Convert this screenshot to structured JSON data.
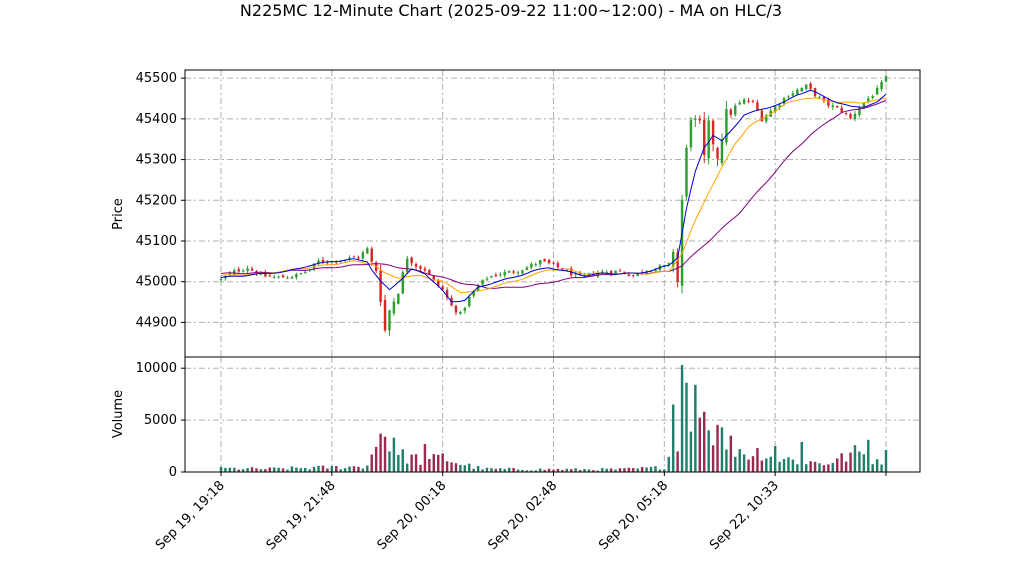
{
  "chart_data": [
    {
      "type": "candlestick",
      "title": "N225MC 12-Minute Chart (2025-09-22 11:00~12:00) - MA on HLC/3",
      "ylabel": "Price",
      "ylim": [
        44815,
        45520
      ],
      "yticks": [
        44900,
        45000,
        45100,
        45200,
        45300,
        45400,
        45500
      ],
      "xtick_labels": [
        "Sep 19, 19:18",
        "Sep 19, 21:48",
        "Sep 20, 00:18",
        "Sep 20, 02:48",
        "Sep 20, 05:18",
        "Sep 22, 10:33"
      ],
      "xtick_index": [
        0,
        25,
        50,
        75,
        100,
        125
      ],
      "bar_count": 151,
      "grid": true,
      "colors": {
        "up": "#2ca02c",
        "down": "#d62728",
        "ma_fast": "#0000cc",
        "ma_mid": "#ffa500",
        "ma_slow": "#800080"
      },
      "close_path": [
        [
          0,
          45005
        ],
        [
          3,
          45025
        ],
        [
          6,
          45035
        ],
        [
          9,
          45015
        ],
        [
          13,
          45010
        ],
        [
          17,
          45015
        ],
        [
          20,
          45030
        ],
        [
          22,
          45050
        ],
        [
          25,
          45050
        ],
        [
          28,
          45055
        ],
        [
          31,
          45060
        ],
        [
          33,
          45080
        ],
        [
          34,
          45045
        ],
        [
          35,
          45030
        ],
        [
          36,
          44960
        ],
        [
          37,
          44880
        ],
        [
          38,
          44930
        ],
        [
          40,
          44980
        ],
        [
          42,
          45060
        ],
        [
          44,
          45040
        ],
        [
          46,
          45030
        ],
        [
          48,
          45000
        ],
        [
          50,
          44980
        ],
        [
          52,
          44940
        ],
        [
          54,
          44920
        ],
        [
          56,
          44960
        ],
        [
          58,
          44990
        ],
        [
          60,
          45010
        ],
        [
          63,
          45020
        ],
        [
          66,
          45025
        ],
        [
          69,
          45035
        ],
        [
          72,
          45050
        ],
        [
          75,
          45040
        ],
        [
          78,
          45025
        ],
        [
          81,
          45010
        ],
        [
          84,
          45020
        ],
        [
          87,
          45025
        ],
        [
          90,
          45025
        ],
        [
          93,
          45015
        ],
        [
          96,
          45030
        ],
        [
          99,
          45035
        ],
        [
          101,
          45040
        ],
        [
          102,
          45080
        ],
        [
          103,
          45000
        ],
        [
          104,
          45200
        ],
        [
          105,
          45320
        ],
        [
          106,
          45410
        ],
        [
          107,
          45390
        ],
        [
          108,
          45380
        ],
        [
          109,
          45300
        ],
        [
          110,
          45380
        ],
        [
          112,
          45310
        ],
        [
          114,
          45410
        ],
        [
          116,
          45430
        ],
        [
          118,
          45445
        ],
        [
          120,
          45440
        ],
        [
          122,
          45400
        ],
        [
          124,
          45420
        ],
        [
          126,
          45440
        ],
        [
          128,
          45460
        ],
        [
          130,
          45470
        ],
        [
          132,
          45480
        ],
        [
          134,
          45460
        ],
        [
          136,
          45440
        ],
        [
          138,
          45430
        ],
        [
          140,
          45420
        ],
        [
          142,
          45400
        ],
        [
          144,
          45430
        ],
        [
          146,
          45450
        ],
        [
          148,
          45470
        ],
        [
          150,
          45500
        ]
      ],
      "ma_fast": [
        [
          0,
          45010
        ],
        [
          5,
          45015
        ],
        [
          10,
          45020
        ],
        [
          15,
          45025
        ],
        [
          20,
          45040
        ],
        [
          25,
          45050
        ],
        [
          30,
          45055
        ],
        [
          33,
          45050
        ],
        [
          34,
          45030
        ],
        [
          36,
          45000
        ],
        [
          38,
          44980
        ],
        [
          40,
          45000
        ],
        [
          43,
          45030
        ],
        [
          46,
          45020
        ],
        [
          49,
          44990
        ],
        [
          52,
          44950
        ],
        [
          55,
          44955
        ],
        [
          58,
          44985
        ],
        [
          62,
          45000
        ],
        [
          66,
          45010
        ],
        [
          70,
          45025
        ],
        [
          74,
          45035
        ],
        [
          78,
          45025
        ],
        [
          82,
          45015
        ],
        [
          86,
          45020
        ],
        [
          90,
          45020
        ],
        [
          94,
          45020
        ],
        [
          98,
          45030
        ],
        [
          101,
          45040
        ],
        [
          103,
          45060
        ],
        [
          105,
          45180
        ],
        [
          107,
          45270
        ],
        [
          109,
          45330
        ],
        [
          111,
          45360
        ],
        [
          113,
          45345
        ],
        [
          115,
          45370
        ],
        [
          118,
          45410
        ],
        [
          121,
          45420
        ],
        [
          124,
          45430
        ],
        [
          127,
          45440
        ],
        [
          130,
          45460
        ],
        [
          133,
          45470
        ],
        [
          136,
          45455
        ],
        [
          139,
          45440
        ],
        [
          142,
          45430
        ],
        [
          145,
          45430
        ],
        [
          148,
          45440
        ],
        [
          150,
          45460
        ]
      ],
      "ma_mid": [
        [
          0,
          45015
        ],
        [
          10,
          45020
        ],
        [
          20,
          45035
        ],
        [
          30,
          45050
        ],
        [
          34,
          45045
        ],
        [
          37,
          45020
        ],
        [
          40,
          45010
        ],
        [
          45,
          45015
        ],
        [
          50,
          45000
        ],
        [
          54,
          44975
        ],
        [
          58,
          44975
        ],
        [
          62,
          44990
        ],
        [
          66,
          45000
        ],
        [
          70,
          45015
        ],
        [
          74,
          45030
        ],
        [
          78,
          45030
        ],
        [
          82,
          45020
        ],
        [
          86,
          45020
        ],
        [
          90,
          45020
        ],
        [
          96,
          45020
        ],
        [
          101,
          45025
        ],
        [
          104,
          45070
        ],
        [
          107,
          45150
        ],
        [
          110,
          45220
        ],
        [
          113,
          45280
        ],
        [
          116,
          45340
        ],
        [
          119,
          45380
        ],
        [
          122,
          45400
        ],
        [
          125,
          45420
        ],
        [
          128,
          45440
        ],
        [
          131,
          45450
        ],
        [
          134,
          45450
        ],
        [
          137,
          45445
        ],
        [
          140,
          45440
        ],
        [
          144,
          45440
        ],
        [
          148,
          45445
        ],
        [
          150,
          45450
        ]
      ],
      "ma_slow": [
        [
          0,
          45020
        ],
        [
          10,
          45022
        ],
        [
          20,
          45030
        ],
        [
          30,
          45040
        ],
        [
          34,
          45045
        ],
        [
          38,
          45040
        ],
        [
          45,
          45025
        ],
        [
          50,
          45010
        ],
        [
          55,
          44995
        ],
        [
          60,
          44985
        ],
        [
          65,
          44985
        ],
        [
          70,
          44990
        ],
        [
          75,
          45000
        ],
        [
          80,
          45010
        ],
        [
          85,
          45015
        ],
        [
          90,
          45020
        ],
        [
          95,
          45020
        ],
        [
          101,
          45025
        ],
        [
          104,
          45040
        ],
        [
          107,
          45070
        ],
        [
          110,
          45100
        ],
        [
          113,
          45130
        ],
        [
          117,
          45170
        ],
        [
          121,
          45220
        ],
        [
          125,
          45270
        ],
        [
          129,
          45320
        ],
        [
          133,
          45360
        ],
        [
          137,
          45395
        ],
        [
          140,
          45415
        ],
        [
          144,
          45425
        ],
        [
          148,
          45435
        ],
        [
          150,
          45445
        ]
      ]
    },
    {
      "type": "bar",
      "ylabel": "Volume",
      "ylim": [
        0,
        10500
      ],
      "yticks": [
        0,
        5000,
        10000
      ],
      "colors": {
        "up": "#1f7f6a",
        "down": "#9b2a53"
      },
      "volume_profile": [
        [
          0,
          350
        ],
        [
          10,
          300
        ],
        [
          20,
          400
        ],
        [
          30,
          500
        ],
        [
          33,
          600
        ],
        [
          34,
          1800
        ],
        [
          35,
          2800
        ],
        [
          36,
          3700
        ],
        [
          37,
          3400
        ],
        [
          38,
          2800
        ],
        [
          40,
          1600
        ],
        [
          43,
          1400
        ],
        [
          46,
          1000
        ],
        [
          48,
          1200
        ],
        [
          50,
          1400
        ],
        [
          52,
          1100
        ],
        [
          54,
          800
        ],
        [
          56,
          600
        ],
        [
          58,
          400
        ],
        [
          60,
          300
        ],
        [
          70,
          260
        ],
        [
          80,
          250
        ],
        [
          90,
          260
        ],
        [
          98,
          400
        ],
        [
          100,
          500
        ],
        [
          101,
          1500
        ],
        [
          102,
          6400
        ],
        [
          103,
          2000
        ],
        [
          104,
          10300
        ],
        [
          105,
          8500
        ],
        [
          106,
          7200
        ],
        [
          107,
          8400
        ],
        [
          108,
          5000
        ],
        [
          109,
          6000
        ],
        [
          110,
          5500
        ],
        [
          111,
          4200
        ],
        [
          112,
          3500
        ],
        [
          114,
          2800
        ],
        [
          116,
          2400
        ],
        [
          118,
          1900
        ],
        [
          120,
          1700
        ],
        [
          122,
          2100
        ],
        [
          124,
          1500
        ],
        [
          126,
          1300
        ],
        [
          128,
          1200
        ],
        [
          130,
          1100
        ],
        [
          132,
          1000
        ],
        [
          134,
          900
        ],
        [
          136,
          800
        ],
        [
          138,
          1100
        ],
        [
          140,
          1300
        ],
        [
          142,
          1700
        ],
        [
          144,
          1900
        ],
        [
          146,
          1300
        ],
        [
          148,
          1200
        ],
        [
          150,
          1500
        ]
      ],
      "spikes": [
        {
          "i": 36,
          "v": 3700
        },
        {
          "i": 37,
          "v": 3400
        },
        {
          "i": 39,
          "v": 3300
        },
        {
          "i": 46,
          "v": 2700
        },
        {
          "i": 102,
          "v": 6500
        },
        {
          "i": 104,
          "v": 10300
        },
        {
          "i": 105,
          "v": 8600
        },
        {
          "i": 107,
          "v": 8400
        },
        {
          "i": 109,
          "v": 5800
        },
        {
          "i": 113,
          "v": 4300
        },
        {
          "i": 125,
          "v": 2500
        },
        {
          "i": 131,
          "v": 2900
        },
        {
          "i": 146,
          "v": 3100
        }
      ]
    }
  ]
}
